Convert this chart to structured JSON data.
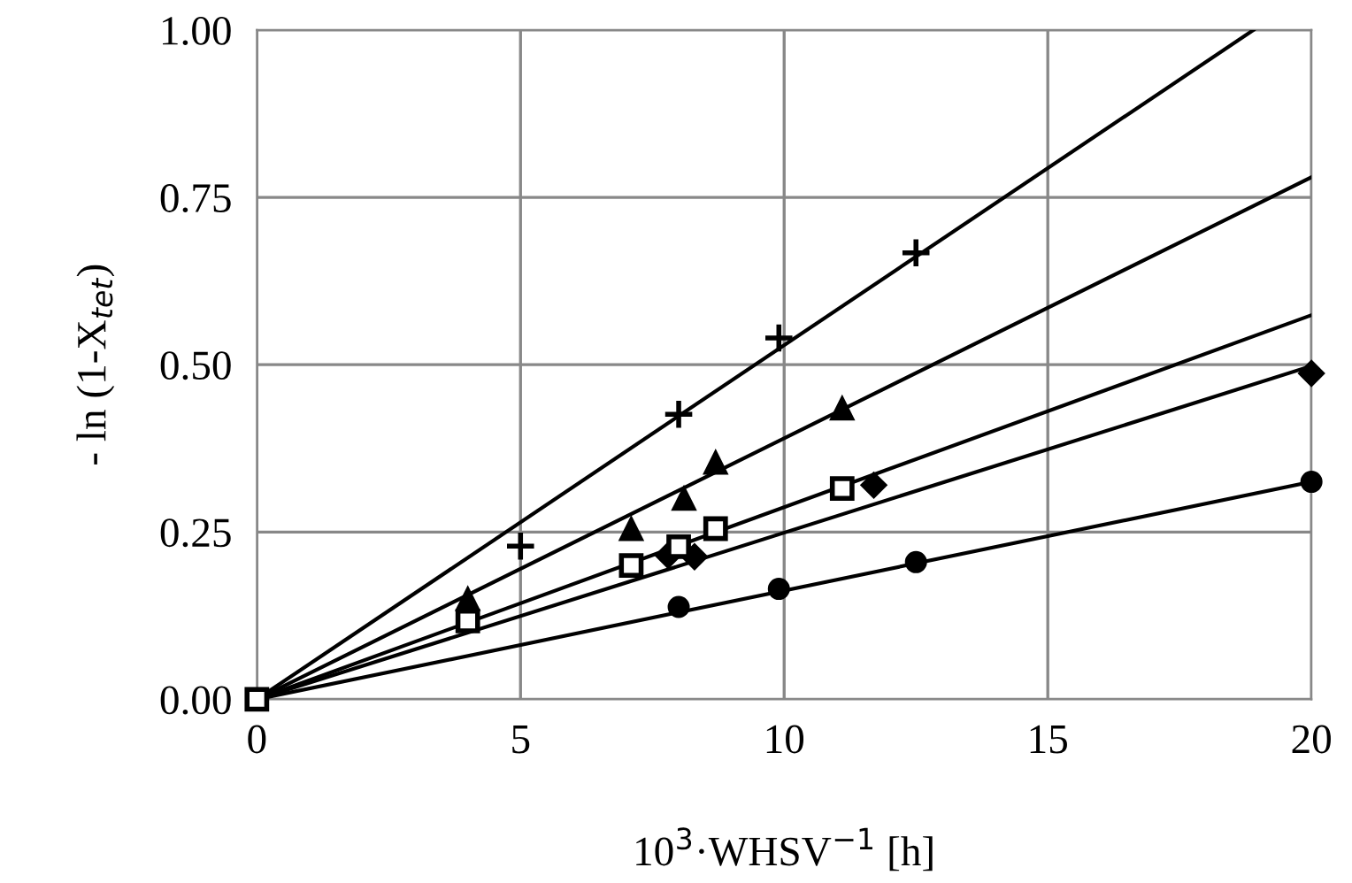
{
  "chart_data": {
    "type": "scatter",
    "xlabel": "10$^{3}$·WHSV$^{−1}$ [h]",
    "ylabel": "- ln (1-X$_{tet}$)",
    "xlim": [
      0,
      20
    ],
    "xticks": [
      0,
      5,
      10,
      15,
      20
    ],
    "ylim": [
      0,
      1
    ],
    "yticks": [
      {
        "value": 0,
        "label": "0.00"
      },
      {
        "value": 0.25,
        "label": "0.25"
      },
      {
        "value": 0.5,
        "label": "0.50"
      },
      {
        "value": 0.75,
        "label": "0.75"
      },
      {
        "value": 1,
        "label": "1.00"
      }
    ],
    "grid": true,
    "series": [
      {
        "type": "line",
        "color": "#000000",
        "x": [
          0,
          18.9
        ],
        "values": [
          0,
          1.0
        ]
      },
      {
        "type": "line",
        "color": "#000000",
        "x": [
          0,
          20
        ],
        "values": [
          0,
          0.78
        ]
      },
      {
        "type": "line",
        "color": "#000000",
        "x": [
          0,
          20
        ],
        "values": [
          0,
          0.574
        ]
      },
      {
        "type": "line",
        "color": "#000000",
        "x": [
          0,
          20
        ],
        "values": [
          0,
          0.498
        ]
      },
      {
        "type": "line",
        "color": "#000000",
        "x": [
          0,
          20
        ],
        "values": [
          0,
          0.325
        ]
      },
      {
        "marker": "cross",
        "color": "#000000",
        "x": [
          5.0,
          8.0,
          9.9,
          12.5
        ],
        "values": [
          0.229,
          0.426,
          0.54,
          0.667
        ]
      },
      {
        "marker": "triangle",
        "color": "#000000",
        "x": [
          4.0,
          7.1,
          8.1,
          8.7,
          11.1
        ],
        "values": [
          0.15,
          0.255,
          0.3,
          0.354,
          0.435
        ]
      },
      {
        "marker": "diamond",
        "color": "#000000",
        "x": [
          7.8,
          8.3,
          11.7,
          20
        ],
        "values": [
          0.215,
          0.213,
          0.32,
          0.487
        ]
      },
      {
        "marker": "circle",
        "color": "#000000",
        "x": [
          8.0,
          9.9,
          12.5,
          20
        ],
        "values": [
          0.138,
          0.165,
          0.205,
          0.325
        ]
      },
      {
        "marker": "square",
        "color": "#000000",
        "x": [
          0,
          4.0,
          7.1,
          8.0,
          8.7,
          11.1
        ],
        "values": [
          0,
          0.117,
          0.2,
          0.228,
          0.255,
          0.315
        ]
      }
    ]
  }
}
